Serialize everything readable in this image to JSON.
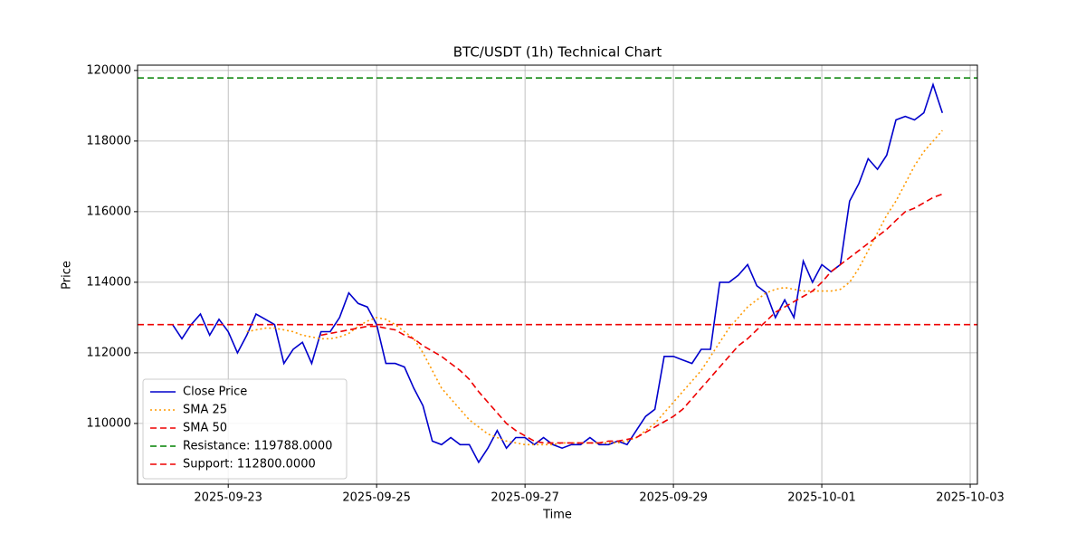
{
  "chart_data": {
    "type": "line",
    "title": "BTC/USDT (1h) Technical Chart",
    "x_label": "Time",
    "y_label": "Price",
    "x": [
      "2025-09-22T06:00",
      "2025-09-22T09:00",
      "2025-09-22T12:00",
      "2025-09-22T15:00",
      "2025-09-22T18:00",
      "2025-09-22T21:00",
      "2025-09-23T00:00",
      "2025-09-23T03:00",
      "2025-09-23T06:00",
      "2025-09-23T09:00",
      "2025-09-23T12:00",
      "2025-09-23T15:00",
      "2025-09-23T18:00",
      "2025-09-23T21:00",
      "2025-09-24T00:00",
      "2025-09-24T03:00",
      "2025-09-24T06:00",
      "2025-09-24T09:00",
      "2025-09-24T12:00",
      "2025-09-24T15:00",
      "2025-09-24T18:00",
      "2025-09-24T21:00",
      "2025-09-25T00:00",
      "2025-09-25T03:00",
      "2025-09-25T06:00",
      "2025-09-25T09:00",
      "2025-09-25T12:00",
      "2025-09-25T15:00",
      "2025-09-25T18:00",
      "2025-09-25T21:00",
      "2025-09-26T00:00",
      "2025-09-26T03:00",
      "2025-09-26T06:00",
      "2025-09-26T09:00",
      "2025-09-26T12:00",
      "2025-09-26T15:00",
      "2025-09-26T18:00",
      "2025-09-26T21:00",
      "2025-09-27T00:00",
      "2025-09-27T03:00",
      "2025-09-27T06:00",
      "2025-09-27T09:00",
      "2025-09-27T12:00",
      "2025-09-27T15:00",
      "2025-09-27T18:00",
      "2025-09-27T21:00",
      "2025-09-28T00:00",
      "2025-09-28T03:00",
      "2025-09-28T06:00",
      "2025-09-28T09:00",
      "2025-09-28T12:00",
      "2025-09-28T15:00",
      "2025-09-28T18:00",
      "2025-09-28T21:00",
      "2025-09-29T00:00",
      "2025-09-29T03:00",
      "2025-09-29T06:00",
      "2025-09-29T09:00",
      "2025-09-29T12:00",
      "2025-09-29T15:00",
      "2025-09-29T18:00",
      "2025-09-29T21:00",
      "2025-09-30T00:00",
      "2025-09-30T03:00",
      "2025-09-30T06:00",
      "2025-09-30T09:00",
      "2025-09-30T12:00",
      "2025-09-30T15:00",
      "2025-09-30T18:00",
      "2025-09-30T21:00",
      "2025-10-01T00:00",
      "2025-10-01T03:00",
      "2025-10-01T06:00",
      "2025-10-01T09:00",
      "2025-10-01T12:00",
      "2025-10-01T15:00",
      "2025-10-01T18:00",
      "2025-10-01T21:00",
      "2025-10-02T00:00",
      "2025-10-02T03:00",
      "2025-10-02T06:00",
      "2025-10-02T09:00",
      "2025-10-02T12:00",
      "2025-10-02T15:00"
    ],
    "series": [
      {
        "name": "Close Price",
        "color": "#0000cc",
        "dash": "solid",
        "values": [
          112800,
          112400,
          112800,
          113100,
          112500,
          112950,
          112600,
          112000,
          112500,
          113100,
          112950,
          112800,
          111700,
          112100,
          112300,
          111700,
          112600,
          112600,
          113000,
          113700,
          113400,
          113300,
          112800,
          111700,
          111700,
          111600,
          111000,
          110500,
          109500,
          109400,
          109600,
          109400,
          109400,
          108900,
          109300,
          109800,
          109300,
          109600,
          109600,
          109400,
          109600,
          109400,
          109300,
          109400,
          109400,
          109600,
          109400,
          109400,
          109500,
          109400,
          109800,
          110200,
          110400,
          111900,
          111900,
          111800,
          111700,
          112100,
          112100,
          114000,
          114000,
          114200,
          114500,
          113900,
          113700,
          113000,
          113500,
          113000,
          114600,
          114000,
          114500,
          114300,
          114500,
          116300,
          116800,
          117500,
          117200,
          117600,
          118600,
          118700,
          118600,
          118800,
          119600,
          118800
        ]
      },
      {
        "name": "SMA 25",
        "color": "#ff9900",
        "dash": "dotted",
        "values": [
          null,
          null,
          null,
          null,
          null,
          null,
          null,
          null,
          112600,
          112650,
          112700,
          112700,
          112650,
          112600,
          112500,
          112450,
          112400,
          112400,
          112450,
          112550,
          112750,
          112900,
          113000,
          112950,
          112800,
          112600,
          112400,
          112000,
          111500,
          111000,
          110700,
          110400,
          110100,
          109900,
          109700,
          109600,
          109500,
          109450,
          109400,
          109400,
          109400,
          109400,
          109450,
          109450,
          109450,
          109450,
          109450,
          109450,
          109450,
          109500,
          109600,
          109800,
          110000,
          110300,
          110600,
          110900,
          111200,
          111500,
          111900,
          112300,
          112700,
          113000,
          113300,
          113500,
          113700,
          113800,
          113850,
          113800,
          113750,
          113750,
          113750,
          113750,
          113800,
          114000,
          114400,
          114900,
          115400,
          115900,
          116300,
          116800,
          117300,
          117700,
          118000,
          118300
        ]
      },
      {
        "name": "SMA 50",
        "color": "#ee0000",
        "dash": "dashed",
        "values": [
          null,
          null,
          null,
          null,
          null,
          null,
          null,
          null,
          null,
          null,
          null,
          null,
          null,
          null,
          null,
          null,
          112500,
          112550,
          112600,
          112650,
          112700,
          112750,
          112750,
          112700,
          112650,
          112500,
          112400,
          112200,
          112050,
          111900,
          111700,
          111500,
          111250,
          110900,
          110600,
          110300,
          110000,
          109800,
          109650,
          109500,
          109450,
          109450,
          109450,
          109450,
          109450,
          109450,
          109450,
          109500,
          109500,
          109550,
          109600,
          109750,
          109900,
          110050,
          110200,
          110400,
          110700,
          111000,
          111300,
          111600,
          111900,
          112200,
          112400,
          112650,
          112900,
          113150,
          113300,
          113450,
          113600,
          113750,
          114000,
          114300,
          114500,
          114700,
          114900,
          115100,
          115300,
          115500,
          115750,
          116000,
          116100,
          116250,
          116400,
          116500
        ]
      }
    ],
    "hlines": [
      {
        "name": "Resistance: 119788.0000",
        "value": 119788,
        "color": "#008000",
        "dash": "dashed"
      },
      {
        "name": "Support: 112800.0000",
        "value": 112800,
        "color": "#ee0000",
        "dash": "dashed"
      }
    ],
    "xlim": [
      "2025-09-21T18:40",
      "2025-10-03T02:20"
    ],
    "xticks": [
      "2025-09-23",
      "2025-09-25",
      "2025-09-27",
      "2025-09-29",
      "2025-10-01",
      "2025-10-03"
    ],
    "ylim": [
      108280,
      120150
    ],
    "yticks": [
      110000,
      112000,
      114000,
      116000,
      118000,
      120000
    ],
    "grid": true,
    "legend": "lower left"
  }
}
